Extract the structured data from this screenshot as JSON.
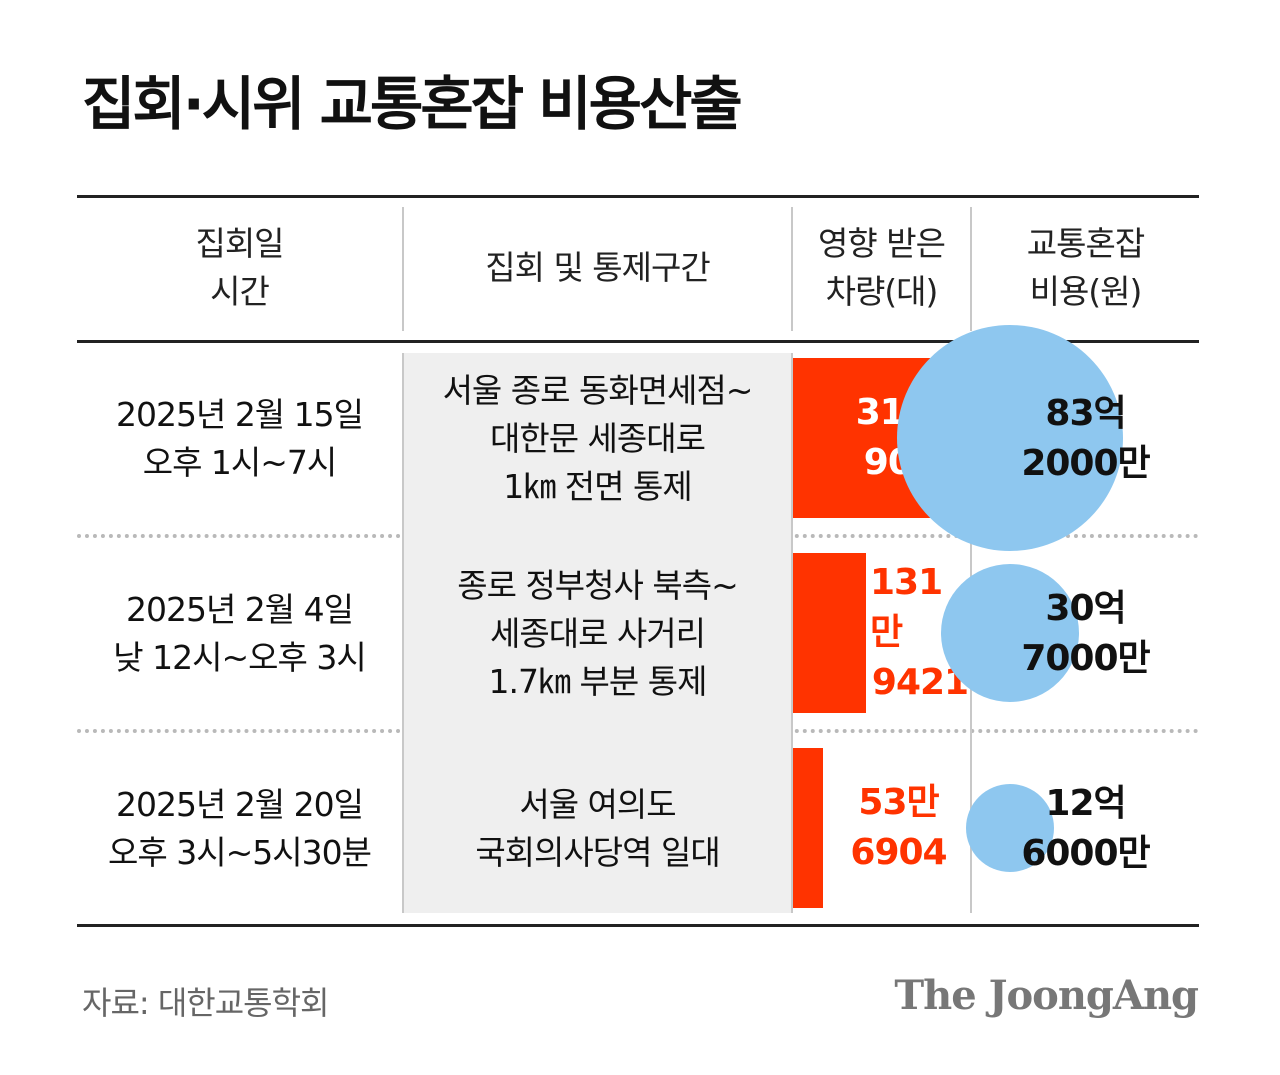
{
  "title": "집회·시위 교통혼잡 비용산출",
  "source": "자료: 대한교통학회",
  "logo": "The JoongAng",
  "colors": {
    "bar": "#ff3300",
    "circle": "#8ec7ef",
    "cell_bg": "#efefef"
  },
  "headers": {
    "date": [
      "집회일",
      "시간"
    ],
    "section": [
      "집회 및 통제구간"
    ],
    "vehicles": [
      "영향 받은",
      "차량(대)"
    ],
    "cost": [
      "교통혼잡",
      "비용(원)"
    ]
  },
  "chart_data": {
    "type": "table",
    "bar_series": {
      "value_unit": "대",
      "max": 3169081
    },
    "circle_series": {
      "value_unit": "원",
      "max": 8320000000
    },
    "rows": [
      {
        "date_lines": [
          "2025년 2월 15일",
          "오후 1시~7시"
        ],
        "section_lines": [
          "서울 종로 동화면세점~",
          "대한문 세종대로",
          "1㎞ 전면 통제"
        ],
        "vehicles_value": 3169081,
        "vehicles_lines": [
          "316만",
          "9081"
        ],
        "cost_value": 8320000000,
        "cost_lines": [
          "83억",
          "2000만"
        ]
      },
      {
        "date_lines": [
          "2025년 2월 4일",
          "낮 12시~오후 3시"
        ],
        "section_lines": [
          "종로 정부청사 북측~",
          "세종대로 사거리",
          "1.7㎞ 부분 통제"
        ],
        "vehicles_value": 1319421,
        "vehicles_lines": [
          "131만",
          "9421"
        ],
        "cost_value": 3070000000,
        "cost_lines": [
          "30억",
          "7000만"
        ]
      },
      {
        "date_lines": [
          "2025년 2월 20일",
          "오후 3시~5시30분"
        ],
        "section_lines": [
          "서울 여의도",
          "국회의사당역 일대"
        ],
        "vehicles_value": 536904,
        "vehicles_lines": [
          "53만",
          "6904"
        ],
        "cost_value": 1260000000,
        "cost_lines": [
          "12억",
          "6000만"
        ]
      }
    ]
  }
}
